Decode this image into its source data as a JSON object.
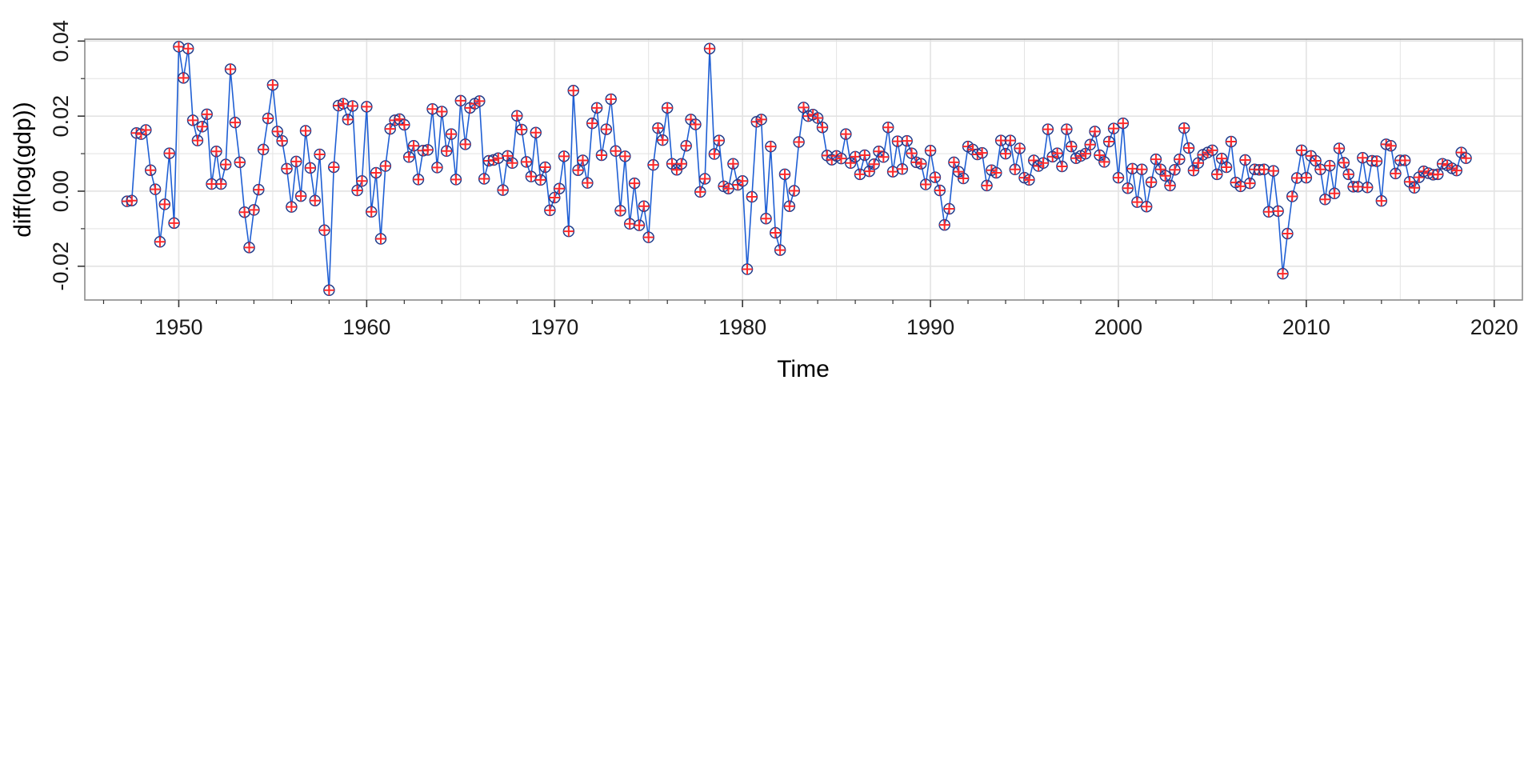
{
  "chart_data": {
    "type": "line",
    "title": "",
    "xlabel": "Time",
    "ylabel": "diff(log(gdp))",
    "xlim": [
      1945.0,
      2021.5
    ],
    "ylim": [
      -0.029,
      0.0405
    ],
    "x_ticks": [
      1950,
      1960,
      1970,
      1980,
      1990,
      2000,
      2010,
      2020
    ],
    "x_tick_labels": [
      "1950",
      "1960",
      "1970",
      "1980",
      "1990",
      "2000",
      "2010",
      "2020"
    ],
    "y_ticks": [
      -0.02,
      0.0,
      0.02,
      0.04
    ],
    "y_tick_labels": [
      "-0.02",
      "0.00",
      "0.02",
      "0.04"
    ],
    "grid": true,
    "colors": {
      "line": "#1f5fd4",
      "circle": "#1f3c8c",
      "plus": "#ff2a2a",
      "grid": "#e3e3e3",
      "frame": "#8c8c8c",
      "axis_text": "#1a1a1a"
    },
    "markers": [
      "open-circle",
      "plus"
    ],
    "series": [
      {
        "start": 1947.25,
        "step": 0.25,
        "values": [
          -0.0027,
          -0.0025,
          0.0155,
          0.0152,
          0.0163,
          0.0056,
          0.0005,
          -0.0135,
          -0.0035,
          0.0101,
          -0.0085,
          0.0385,
          0.0302,
          0.038,
          0.0189,
          0.0135,
          0.0172,
          0.0205,
          0.0019,
          0.0106,
          0.0019,
          0.0071,
          0.0325,
          0.0183,
          0.0077,
          -0.0056,
          -0.015,
          -0.005,
          0.0004,
          0.0111,
          0.0194,
          0.0283,
          0.0159,
          0.0134,
          0.006,
          -0.0042,
          0.0079,
          -0.0013,
          0.0161,
          0.0062,
          -0.0025,
          0.0098,
          -0.0104,
          -0.0264,
          0.0064,
          0.0228,
          0.0233,
          0.0191,
          0.0227,
          0.0002,
          0.0027,
          0.0225,
          -0.0055,
          0.0049,
          -0.0127,
          0.0067,
          0.0166,
          0.0189,
          0.0192,
          0.0177,
          0.0091,
          0.0121,
          0.0031,
          0.0108,
          0.011,
          0.0219,
          0.0063,
          0.0212,
          0.0107,
          0.0152,
          0.0031,
          0.0241,
          0.0125,
          0.0222,
          0.0233,
          0.024,
          0.0033,
          0.0081,
          0.0083,
          0.0088,
          0.0003,
          0.0094,
          0.0075,
          0.0201,
          0.0164,
          0.0078,
          0.0039,
          0.0156,
          0.003,
          0.0064,
          -0.0051,
          -0.0017,
          0.0007,
          0.0093,
          -0.0107,
          0.0268,
          0.0056,
          0.0082,
          0.0022,
          0.0181,
          0.0222,
          0.0096,
          0.0165,
          0.0245,
          0.0107,
          -0.0052,
          0.0093,
          -0.0087,
          0.0021,
          -0.0091,
          -0.004,
          -0.0123,
          0.007,
          0.0168,
          0.0136,
          0.0222,
          0.0073,
          0.0057,
          0.0073,
          0.0121,
          0.0191,
          0.0178,
          -0.0002,
          0.0033,
          0.038,
          0.0099,
          0.0135,
          0.0013,
          0.0007,
          0.0073,
          0.0017,
          0.0027,
          -0.0208,
          -0.0015,
          0.0185,
          0.0191,
          -0.0073,
          0.0119,
          -0.0111,
          -0.0157,
          0.0045,
          -0.004,
          0.0001,
          0.0131,
          0.0223,
          0.02,
          0.0204,
          0.0195,
          0.017,
          0.0095,
          0.0084,
          0.0094,
          0.0087,
          0.0152,
          0.0075,
          0.0092,
          0.0045,
          0.0096,
          0.0053,
          0.0072,
          0.0106,
          0.0091,
          0.017,
          0.0052,
          0.0133,
          0.0059,
          0.0134,
          0.0101,
          0.0077,
          0.0073,
          0.0018,
          0.0108,
          0.0037,
          0.0002,
          -0.009,
          -0.0047,
          0.0077,
          0.0052,
          0.0034,
          0.0119,
          0.0111,
          0.0098,
          0.0102,
          0.0015,
          0.0056,
          0.0049,
          0.0135,
          0.01,
          0.0135,
          0.0058,
          0.0114,
          0.0036,
          0.003,
          0.0082,
          0.0067,
          0.0075,
          0.0165,
          0.0092,
          0.0101,
          0.0066,
          0.0165,
          0.0119,
          0.0088,
          0.0094,
          0.01,
          0.0124,
          0.0159,
          0.0096,
          0.0078,
          0.0132,
          0.0167,
          0.0036,
          0.0181,
          0.0008,
          0.006,
          -0.0029,
          0.0058,
          -0.0041,
          0.0024,
          0.0085,
          0.0058,
          0.0041,
          0.0015,
          0.0057,
          0.0085,
          0.0168,
          0.0115,
          0.0055,
          0.0075,
          0.0097,
          0.0103,
          0.0109,
          0.0045,
          0.0087,
          0.0064,
          0.0132,
          0.0023,
          0.0013,
          0.0083,
          0.0021,
          0.0058,
          0.0057,
          0.0058,
          -0.0055,
          0.0054,
          -0.0053,
          -0.022,
          -0.0113,
          -0.0014,
          0.0035,
          0.0109,
          0.0036,
          0.0094,
          0.0081,
          0.0058,
          -0.0022,
          0.0068,
          -0.0006,
          0.0114,
          0.0076,
          0.0045,
          0.0012,
          0.0012,
          0.0089,
          0.001,
          0.0081,
          0.008,
          -0.0026,
          0.0125,
          0.0121,
          0.0047,
          0.0082,
          0.0082,
          0.0025,
          0.0009,
          0.0037,
          0.0053,
          0.0048,
          0.0044,
          0.0045,
          0.0073,
          0.0069,
          0.0061,
          0.0055,
          0.0103,
          0.0088
        ]
      }
    ]
  }
}
